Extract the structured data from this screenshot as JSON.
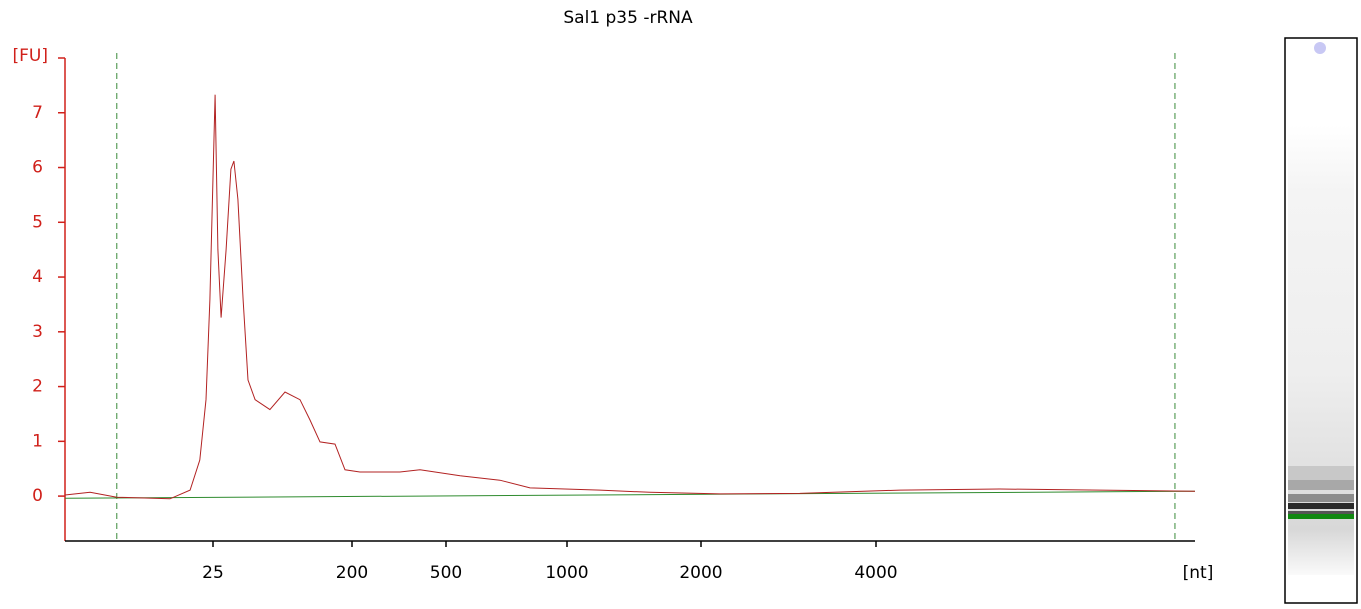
{
  "chart_data": {
    "type": "line",
    "title": "Sal1 p35 -rRNA",
    "y_label": "[FU]",
    "x_label": "[nt]",
    "xlim": [
      3,
      14000
    ],
    "ylim": [
      -0.82,
      8
    ],
    "xticks": [
      25,
      200,
      500,
      1000,
      2000,
      4000
    ],
    "yticks": [
      0,
      1,
      2,
      3,
      4,
      5,
      6,
      7
    ],
    "y_axis_color": "#d0201a",
    "series": [
      {
        "color": "#b22222",
        "x": [
          3,
          4.3,
          6.3,
          13.5,
          18.0,
          20.7,
          22.6,
          23.9,
          25.8,
          26.9,
          28.2,
          30.4,
          32.7,
          34.2,
          36.3,
          39.2,
          42.2,
          46.9,
          58.6,
          73.4,
          91.9,
          106.7,
          124,
          155,
          180,
          216,
          319,
          388,
          542,
          681,
          809,
          1186,
          1535,
          2157,
          2958,
          4395,
          6503,
          9638,
          14000
        ],
        "values": [
          0.02,
          0.07,
          -0.02,
          -0.05,
          0.11,
          0.66,
          1.76,
          3.59,
          7.33,
          4.5,
          3.26,
          4.5,
          5.97,
          6.12,
          5.42,
          3.59,
          2.12,
          1.76,
          1.58,
          1.9,
          1.76,
          1.39,
          0.99,
          0.95,
          0.48,
          0.44,
          0.44,
          0.48,
          0.37,
          0.29,
          0.15,
          0.11,
          0.07,
          0.04,
          0.05,
          0.11,
          0.13,
          0.11,
          0.09
        ]
      },
      {
        "color": "#2e8b2e",
        "x": [
          3,
          14000
        ],
        "values": [
          -0.04,
          0.09
        ]
      }
    ],
    "markers": {
      "color": "#3a8a3a",
      "x": [
        6.3,
        12940
      ]
    }
  }
}
